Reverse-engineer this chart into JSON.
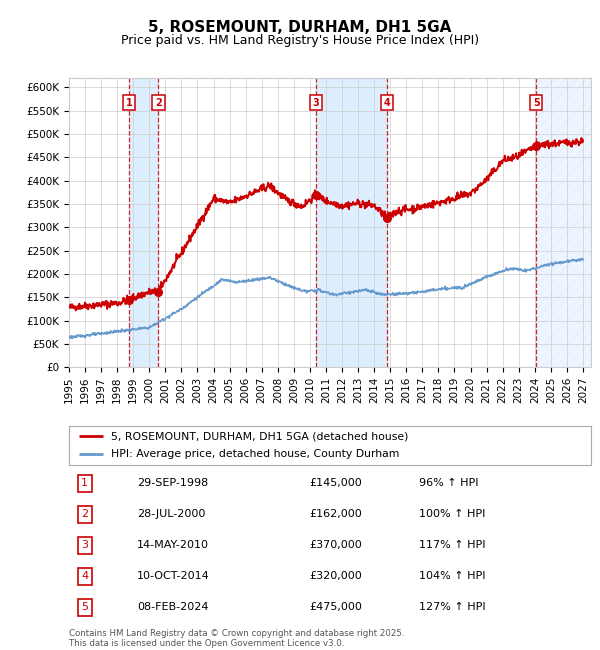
{
  "title": "5, ROSEMOUNT, DURHAM, DH1 5GA",
  "subtitle": "Price paid vs. HM Land Registry's House Price Index (HPI)",
  "ylim": [
    0,
    620000
  ],
  "xlim_start": 1995.0,
  "xlim_end": 2027.5,
  "yticks": [
    0,
    50000,
    100000,
    150000,
    200000,
    250000,
    300000,
    350000,
    400000,
    450000,
    500000,
    550000,
    600000
  ],
  "ytick_labels": [
    "£0",
    "£50K",
    "£100K",
    "£150K",
    "£200K",
    "£250K",
    "£300K",
    "£350K",
    "£400K",
    "£450K",
    "£500K",
    "£550K",
    "£600K"
  ],
  "xtick_years": [
    1995,
    1996,
    1997,
    1998,
    1999,
    2000,
    2001,
    2002,
    2003,
    2004,
    2005,
    2006,
    2007,
    2008,
    2009,
    2010,
    2011,
    2012,
    2013,
    2014,
    2015,
    2016,
    2017,
    2018,
    2019,
    2020,
    2021,
    2022,
    2023,
    2024,
    2025,
    2026,
    2027
  ],
  "sale_dates_num": [
    1998.747,
    2000.572,
    2010.37,
    2014.775,
    2024.097
  ],
  "sale_prices": [
    145000,
    162000,
    370000,
    320000,
    475000
  ],
  "sale_labels": [
    "1",
    "2",
    "3",
    "4",
    "5"
  ],
  "sale_dates_str": [
    "29-SEP-1998",
    "28-JUL-2000",
    "14-MAY-2010",
    "10-OCT-2014",
    "08-FEB-2024"
  ],
  "sale_pct": [
    "96%",
    "100%",
    "117%",
    "104%",
    "127%"
  ],
  "red_line_color": "#cc0000",
  "blue_line_color": "#6699cc",
  "grid_color": "#cccccc",
  "shade_color": "#ddeeff",
  "bg_color": "#ffffff",
  "legend_entry1": "5, ROSEMOUNT, DURHAM, DH1 5GA (detached house)",
  "legend_entry2": "HPI: Average price, detached house, County Durham",
  "footer": "Contains HM Land Registry data © Crown copyright and database right 2025.\nThis data is licensed under the Open Government Licence v3.0.",
  "title_fontsize": 11,
  "subtitle_fontsize": 9,
  "axis_fontsize": 7.5
}
